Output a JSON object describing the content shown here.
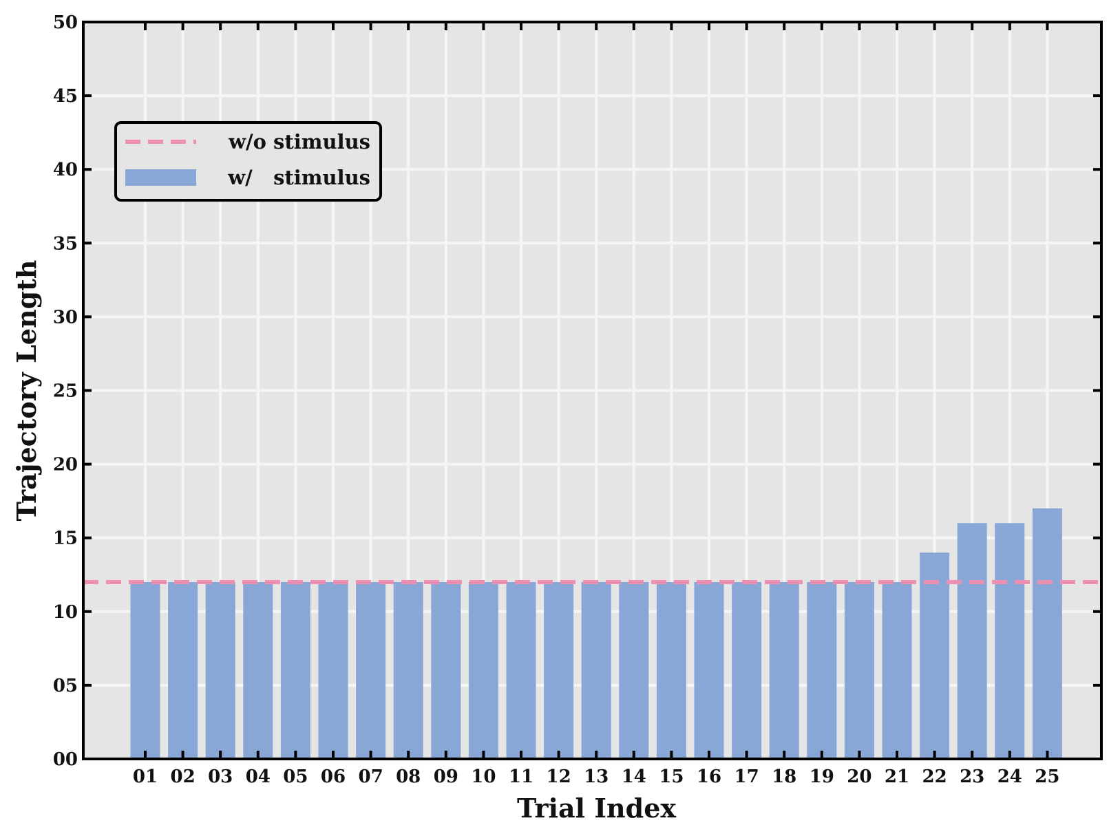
{
  "chart_data": {
    "type": "bar",
    "title": "",
    "xlabel": "Trial Index",
    "ylabel": "Trajectory Length",
    "categories": [
      "01",
      "02",
      "03",
      "04",
      "05",
      "06",
      "07",
      "08",
      "09",
      "10",
      "11",
      "12",
      "13",
      "14",
      "15",
      "16",
      "17",
      "18",
      "19",
      "20",
      "21",
      "22",
      "23",
      "24",
      "25"
    ],
    "series": [
      {
        "name": "w/   stimulus",
        "kind": "bar",
        "color": "#88a6d6",
        "values": [
          12,
          12,
          12,
          12,
          12,
          12,
          12,
          12,
          12,
          12,
          12,
          12,
          12,
          12,
          12,
          12,
          12,
          12,
          12,
          12,
          12,
          14,
          16,
          16,
          17
        ]
      },
      {
        "name": "w/o stimulus",
        "kind": "hline",
        "color": "#ec8fb0",
        "value": 12
      }
    ],
    "ylim": [
      0,
      50
    ],
    "y_ticks": [
      "00",
      "05",
      "10",
      "15",
      "20",
      "25",
      "30",
      "35",
      "40",
      "45",
      "50"
    ],
    "grid": true,
    "legend_position": "upper-left",
    "plot_background": "#e5e5e5",
    "grid_color": "#f5f5f5"
  }
}
